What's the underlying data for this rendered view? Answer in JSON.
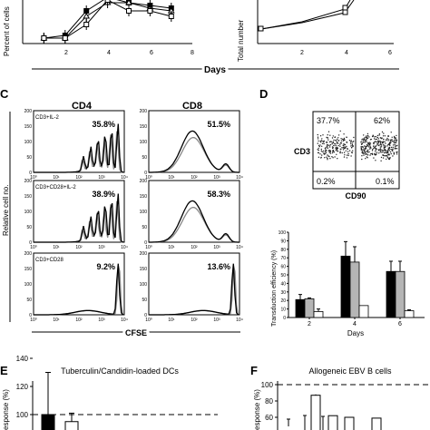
{
  "panels": {
    "A": {
      "ylabel": "Percent of cells",
      "xticks": [
        "2",
        "4",
        "6",
        "8"
      ],
      "series": [
        {
          "marker": "filled-square",
          "values": [
            [
              1,
              2
            ],
            [
              2,
              3
            ],
            [
              3,
              12
            ],
            [
              4,
              17
            ],
            [
              5,
              15
            ],
            [
              6,
              14
            ],
            [
              7,
              13
            ]
          ]
        },
        {
          "marker": "open-triangle",
          "values": [
            [
              1,
              2
            ],
            [
              2,
              2
            ],
            [
              3,
              10
            ],
            [
              4,
              15
            ],
            [
              5,
              15
            ],
            [
              6,
              13
            ],
            [
              7,
              12
            ]
          ]
        },
        {
          "marker": "open-square",
          "values": [
            [
              1,
              2
            ],
            [
              2,
              2
            ],
            [
              3,
              7
            ],
            [
              4,
              16
            ],
            [
              5,
              12
            ],
            [
              6,
              12
            ],
            [
              7,
              10
            ]
          ]
        }
      ]
    },
    "B": {
      "ylabel": "Total number",
      "xticks": [
        "2",
        "4",
        "6"
      ]
    },
    "shared_xlabel": "Days",
    "C": {
      "letter": "C",
      "col_titles": [
        "CD4",
        "CD8"
      ],
      "ylabel": "Relative cell no.",
      "xlabel": "CFSE",
      "yticks": [
        "0",
        "50",
        "100",
        "150",
        "200"
      ],
      "xticks": [
        "10⁰",
        "10¹",
        "10²",
        "10³",
        "10⁴"
      ],
      "rows": [
        {
          "condition": "CD3+IL-2",
          "cd4_pct": "35.8%",
          "cd8_pct": "51.5%"
        },
        {
          "condition": "CD3+CD28+IL-2",
          "cd4_pct": "38.9%",
          "cd8_pct": "58.3%"
        },
        {
          "condition": "CD3+CD28",
          "cd4_pct": "9.2%",
          "cd8_pct": "13.6%"
        }
      ]
    },
    "D": {
      "letter": "D",
      "scatter": {
        "ylabel": "CD3",
        "xlabel": "CD90",
        "quadrants": {
          "ul": "37.7%",
          "ur": "62%",
          "ll": "0.2%",
          "lr": "0.1%"
        }
      },
      "chart_data": {
        "type": "bar",
        "categories": [
          "2",
          "4",
          "6"
        ],
        "series": [
          {
            "color": "#000000",
            "values": [
              21,
              72,
              54
            ],
            "errors": [
              6,
              17,
              12
            ]
          },
          {
            "color": "#b5b5b5",
            "values": [
              22,
              65,
              54
            ],
            "errors": [
              1,
              18,
              12
            ]
          },
          {
            "color": "#ffffff",
            "values": [
              7,
              14,
              8
            ],
            "errors": [
              3,
              0,
              1
            ]
          }
        ],
        "xlabel": "Days",
        "ylabel": "Transduction efficiency (%)",
        "ylim": [
          0,
          100
        ],
        "yticks": [
          "0",
          "10",
          "20",
          "30",
          "40",
          "50",
          "60",
          "70",
          "80",
          "90",
          "100"
        ]
      }
    },
    "E": {
      "letter": "E",
      "title": "Tuberculin/Candidin-loaded DCs",
      "ylabel": "esponse (%)",
      "yticks": [
        "100",
        "120",
        "140"
      ],
      "bars": [
        {
          "color": "#000000",
          "value": 100,
          "error": 30
        },
        {
          "color": "#ffffff",
          "value": 95,
          "error": 6
        }
      ]
    },
    "F": {
      "letter": "F",
      "title": "Allogeneic EBV B cells",
      "ylabel": "esponse (%)",
      "yticks": [
        "60",
        "80",
        "100"
      ],
      "bars": [
        {
          "color": "#ffffff",
          "value": 87,
          "error": 1
        },
        {
          "color": "#ffffff",
          "value": 62,
          "error": 0
        },
        {
          "color": "#ffffff",
          "value": 60,
          "error": 0
        },
        {
          "color": "#ffffff",
          "value": 59,
          "error": 0
        }
      ]
    }
  }
}
